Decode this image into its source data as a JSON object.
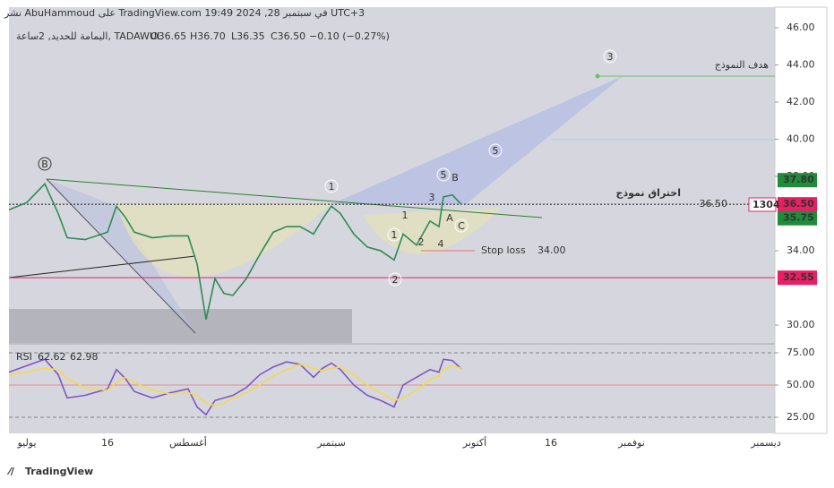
{
  "header": {
    "caption": "نشر AbuHammoud على TradingView.com في سبتمبر 28, 2024 19:49 UTC+3"
  },
  "chart_data": [
    {
      "type": "line",
      "title": "اليمامة للحديد, 2ساعة, TADAWUL",
      "legend_items": [
        "O36.65",
        "H36.70",
        "L36.35",
        "C36.50",
        "−0.10 (−0.27%)"
      ],
      "x": [
        0,
        4,
        8,
        11,
        13,
        17,
        22,
        24,
        26,
        28,
        32,
        36,
        40,
        42,
        44,
        46,
        48,
        50,
        53,
        56,
        59,
        62,
        65,
        68,
        70,
        72,
        74,
        77,
        80,
        83,
        86,
        88,
        91,
        94,
        96,
        97,
        99,
        101
      ],
      "series": [
        {
          "name": "اليمامة للحديد",
          "color": "#2e8b57",
          "values": [
            36.2,
            36.6,
            37.6,
            36.0,
            34.7,
            34.6,
            35.0,
            36.4,
            35.8,
            35.0,
            34.7,
            34.8,
            34.8,
            33.3,
            30.3,
            32.5,
            31.7,
            31.6,
            32.5,
            33.8,
            35.0,
            35.3,
            35.3,
            34.9,
            35.7,
            36.4,
            36.0,
            34.9,
            34.2,
            34.0,
            33.5,
            34.9,
            34.3,
            35.6,
            35.3,
            36.9,
            37.0,
            36.5
          ]
        }
      ],
      "xlim": [
        0,
        171
      ],
      "xticks": [
        {
          "value": 4,
          "label": "يوليو"
        },
        {
          "value": 22,
          "label": "16"
        },
        {
          "value": 40,
          "label": "أغسطس"
        },
        {
          "value": 72,
          "label": "سبتمبر"
        },
        {
          "value": 104,
          "label": "أكتوبر"
        },
        {
          "value": 121,
          "label": "16"
        },
        {
          "value": 139,
          "label": "نوفمبر"
        },
        {
          "value": 169,
          "label": "ديسمبر"
        }
      ],
      "ylim": [
        29.04,
        47.01
      ],
      "yticks": [
        {
          "value": 46,
          "label": "46.00"
        },
        {
          "value": 44,
          "label": "44.00"
        },
        {
          "value": 42,
          "label": "42.00"
        },
        {
          "value": 40,
          "label": "40.00"
        },
        {
          "value": 38,
          "label": "38.00"
        },
        {
          "value": 34,
          "label": "34.00"
        },
        {
          "value": 30,
          "label": "30.00"
        }
      ],
      "price_labels": [
        {
          "value": 37.8,
          "label": "37.80",
          "color": "#1e8c3a"
        },
        {
          "value": 36.5,
          "label": "36.50",
          "color": "#e91e63"
        },
        {
          "value": 35.75,
          "label": "35.75",
          "color": "#1e8c3a"
        },
        {
          "value": 32.55,
          "label": "32.55",
          "color": "#e91e63"
        }
      ],
      "volume_label": "1304",
      "annotations": [
        "اختراق نموذج",
        "هدف النموذج",
        "Stop loss",
        "34.00",
        "36.50"
      ],
      "wave_labels": [
        "B",
        "1",
        "5",
        "B",
        "3",
        "1",
        "A",
        "C",
        "2",
        "4",
        "1",
        "2",
        "3",
        "5"
      ]
    },
    {
      "type": "line",
      "title": "RSI",
      "legend_items": [
        "62.62",
        "62.98"
      ],
      "x": [
        0,
        4,
        8,
        11,
        13,
        17,
        22,
        24,
        26,
        28,
        32,
        36,
        40,
        42,
        44,
        46,
        48,
        50,
        53,
        56,
        59,
        62,
        65,
        68,
        70,
        72,
        74,
        77,
        80,
        83,
        86,
        88,
        91,
        94,
        96,
        97,
        99,
        101
      ],
      "series": [
        {
          "name": "RSI",
          "color": "#7e57c2",
          "values": [
            60,
            65,
            70,
            58,
            40,
            42,
            47,
            62,
            55,
            45,
            40,
            44,
            47,
            33,
            27,
            38,
            40,
            42,
            48,
            58,
            64,
            68,
            66,
            56,
            63,
            67,
            62,
            50,
            42,
            38,
            33,
            50,
            56,
            62,
            60,
            70,
            69,
            62.62
          ]
        },
        {
          "name": "MA",
          "color": "#f5d94a",
          "values": [
            58,
            60,
            63,
            62,
            55,
            48,
            46,
            52,
            56,
            52,
            46,
            43,
            44,
            42,
            36,
            34,
            36,
            40,
            44,
            50,
            57,
            62,
            66,
            63,
            61,
            63,
            64,
            58,
            50,
            44,
            38,
            40,
            46,
            54,
            57,
            62,
            65,
            62.98
          ]
        }
      ],
      "xlim": [
        0,
        171
      ],
      "ylim": [
        13.89,
        79.86
      ],
      "yticks": [
        {
          "value": 75,
          "label": "75.00"
        },
        {
          "value": 50,
          "label": "50.00"
        },
        {
          "value": 25,
          "label": "25.00"
        }
      ]
    }
  ],
  "footer": {
    "brand": "TradingView"
  }
}
